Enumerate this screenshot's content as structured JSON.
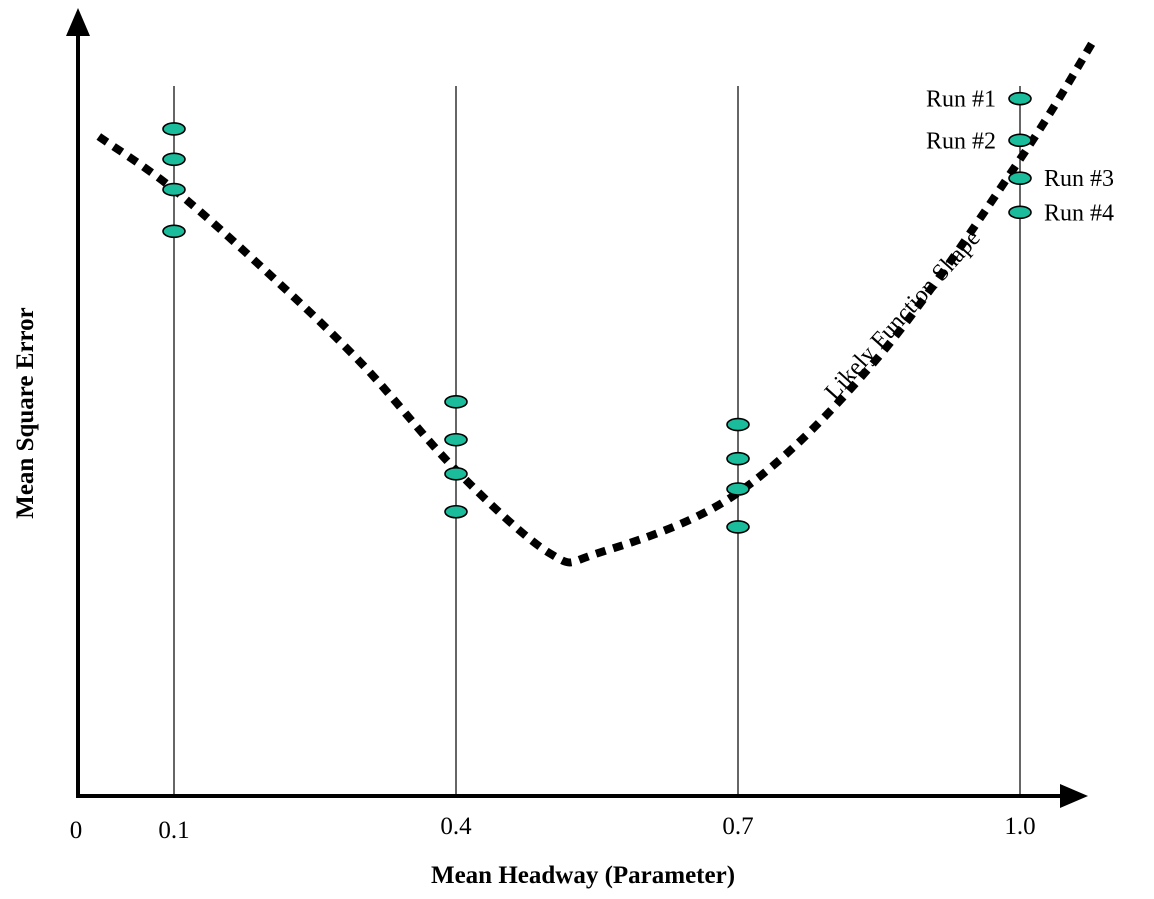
{
  "chart_data": {
    "type": "scatter",
    "xlabel": "Mean Headway (Parameter)",
    "ylabel": "Mean Square Error",
    "x_ticks": [
      "0",
      "0.1",
      "0.4",
      "0.7",
      "1.0"
    ],
    "xlim": [
      0,
      1.05
    ],
    "grid": "vertical lines at 0.1, 0.4, 0.7, 1.0",
    "series": [
      {
        "name": "Run #1",
        "x": [
          0.1,
          0.4,
          0.7,
          1.0
        ],
        "y": [
          0.88,
          0.52,
          0.49,
          0.92
        ]
      },
      {
        "name": "Run #2",
        "x": [
          0.1,
          0.4,
          0.7,
          1.0
        ],
        "y": [
          0.84,
          0.47,
          0.445,
          0.865
        ]
      },
      {
        "name": "Run #3",
        "x": [
          0.1,
          0.4,
          0.7,
          1.0
        ],
        "y": [
          0.8,
          0.425,
          0.405,
          0.815
        ]
      },
      {
        "name": "Run #4",
        "x": [
          0.1,
          0.4,
          0.7,
          1.0
        ],
        "y": [
          0.745,
          0.375,
          0.355,
          0.77
        ]
      }
    ],
    "curve": {
      "label": "Likely Function Shape",
      "style": "dashed",
      "x": [
        0.02,
        0.1,
        0.2,
        0.3,
        0.4,
        0.5,
        0.55,
        0.7,
        0.85,
        1.0,
        1.08
      ],
      "y": [
        0.87,
        0.8,
        0.69,
        0.57,
        0.43,
        0.32,
        0.32,
        0.4,
        0.58,
        0.84,
        1.0
      ]
    }
  }
}
